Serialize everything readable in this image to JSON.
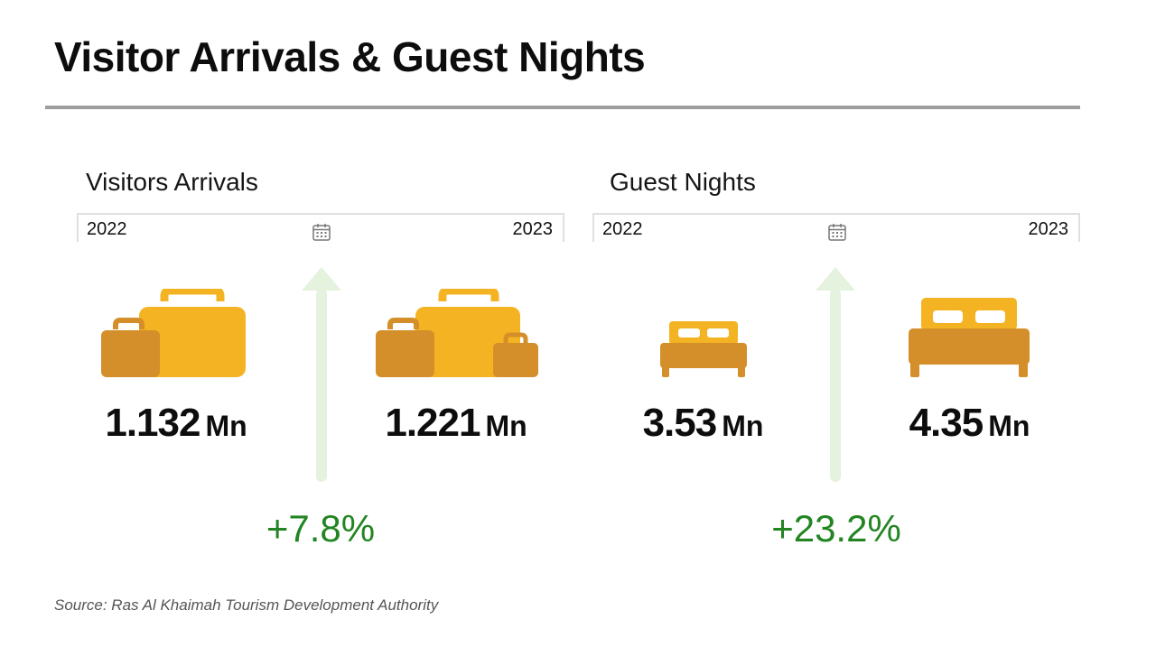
{
  "title": "Visitor Arrivals & Guest Nights",
  "source": "Source: Ras Al Khaimah Tourism Development Authority",
  "colors": {
    "gold": "#F4B322",
    "amber": "#D48F2A",
    "arrow": "#E4F2DE",
    "growth": "#228522",
    "rule": "#9E9E9E"
  },
  "panels": [
    {
      "title": "Visitors Arrivals",
      "period_from": "2022",
      "period_to": "2023",
      "icon": "luggage-icon",
      "value_2022": "1.132",
      "value_2023": "1.221",
      "unit": "Mn",
      "growth": "+7.8%"
    },
    {
      "title": "Guest Nights",
      "period_from": "2022",
      "period_to": "2023",
      "icon": "bed-icon",
      "value_2022": "3.53",
      "value_2023": "4.35",
      "unit": "Mn",
      "growth": "+23.2%"
    }
  ],
  "chart_data": [
    {
      "type": "table",
      "title": "Visitors Arrivals",
      "categories": [
        "2022",
        "2023"
      ],
      "values": [
        1.132,
        1.221
      ],
      "unit": "Mn",
      "change_pct": 7.8
    },
    {
      "type": "table",
      "title": "Guest Nights",
      "categories": [
        "2022",
        "2023"
      ],
      "values": [
        3.53,
        4.35
      ],
      "unit": "Mn",
      "change_pct": 23.2
    }
  ]
}
